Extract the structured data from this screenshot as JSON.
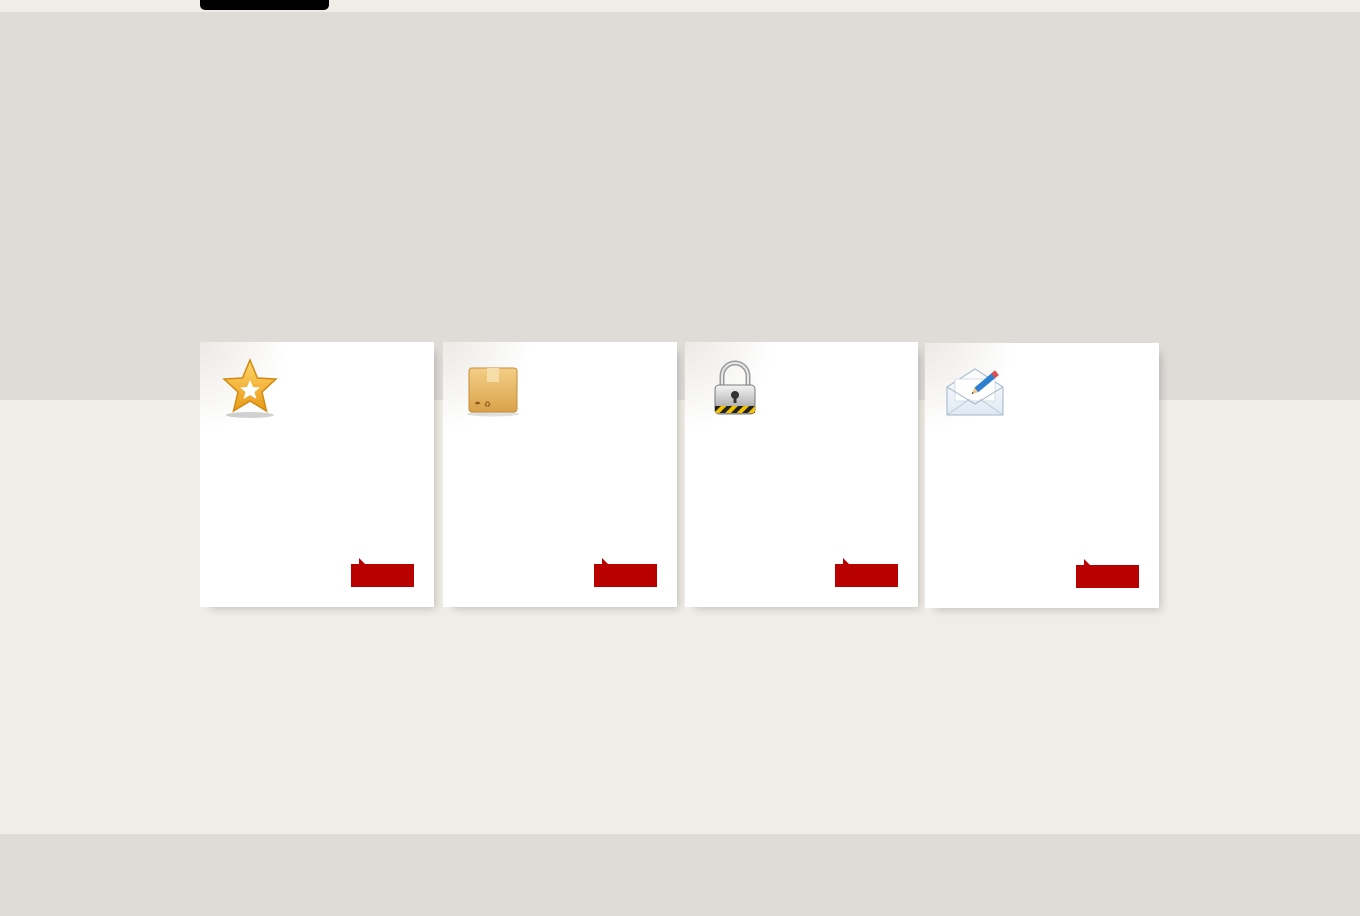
{
  "header": {
    "logo_label": ""
  },
  "cards": [
    {
      "icon": "star-icon",
      "title": "",
      "text": "",
      "button_label": ""
    },
    {
      "icon": "package-box-icon",
      "title": "",
      "text": "",
      "button_label": ""
    },
    {
      "icon": "padlock-icon",
      "title": "",
      "text": "",
      "button_label": ""
    },
    {
      "icon": "envelope-pencil-icon",
      "title": "",
      "text": "",
      "button_label": ""
    }
  ],
  "colors": {
    "page_background": "#f0ede6",
    "hero_background": "#dfdcd8",
    "card_background": "#ffffff",
    "accent_red": "#b80000",
    "logo_black": "#000000"
  }
}
